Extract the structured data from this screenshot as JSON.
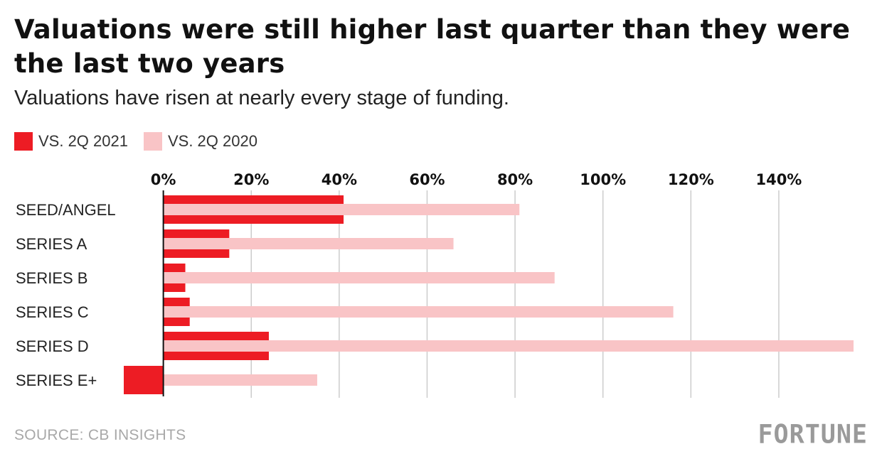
{
  "title": "Valuations were still higher last quarter than they were the last two years",
  "subtitle": "Valuations have risen at nearly every stage of funding.",
  "source": "SOURCE: CB INSIGHTS",
  "logo": "FORTUNE",
  "colors": {
    "series_2021": "#ed1c24",
    "series_2020": "#f9c4c6",
    "grid": "#cccccc",
    "axis": "#111111"
  },
  "chart_data": {
    "type": "bar",
    "orientation": "horizontal",
    "categories": [
      "SEED/ANGEL",
      "SERIES A",
      "SERIES B",
      "SERIES C",
      "SERIES D",
      "SERIES E+"
    ],
    "series": [
      {
        "name": "VS. 2Q 2021",
        "values": [
          41,
          15,
          5,
          6,
          24,
          -9
        ]
      },
      {
        "name": "VS. 2Q 2020",
        "values": [
          81,
          66,
          89,
          116,
          157,
          35
        ]
      }
    ],
    "xlim": [
      -9,
      157
    ],
    "xticks": [
      0,
      20,
      40,
      60,
      80,
      100,
      120,
      140
    ],
    "xtick_labels": [
      "0%",
      "20%",
      "40%",
      "60%",
      "80%",
      "100%",
      "120%",
      "140%"
    ],
    "xaxis_position": "top",
    "grid": true,
    "legend_position": "top-left"
  }
}
